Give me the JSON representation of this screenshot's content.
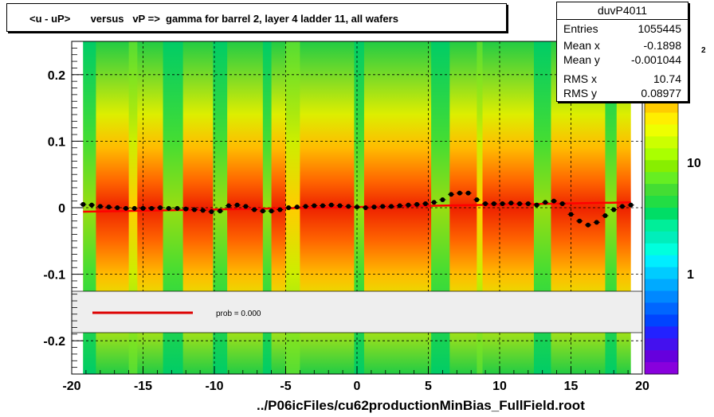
{
  "title": "<u - uP>       versus   vP =>  gamma for barrel 2, layer 4 ladder 11, all wafers",
  "stats": {
    "name": "duvP4011",
    "rows": [
      {
        "key": "Entries",
        "value": "1055445"
      },
      {
        "key": "Mean x",
        "value": "-0.1898"
      },
      {
        "key": "Mean y",
        "value": "-0.001044"
      },
      {
        "key": "RMS x",
        "value": "10.74"
      },
      {
        "key": "RMS y",
        "value": "0.08977"
      }
    ]
  },
  "legend": {
    "label": "prob = 0.000",
    "line_color": "#dd0000"
  },
  "footer": "../P06icFiles/cu62productionMinBias_FullField.root",
  "palette_labels": [
    "10",
    "1"
  ],
  "palette_exponent": "2",
  "chart_data": {
    "type": "heatmap",
    "xlim": [
      -20,
      20
    ],
    "ylim": [
      -0.25,
      0.25
    ],
    "x_ticks": [
      -20,
      -15,
      -10,
      -5,
      0,
      5,
      10,
      15,
      20
    ],
    "y_ticks": [
      -0.2,
      -0.1,
      0,
      0.1,
      0.2
    ],
    "x_tick_labels": [
      "-20",
      "-15",
      "-10",
      "-5",
      "0",
      "5",
      "10",
      "15",
      "20"
    ],
    "y_tick_labels": [
      "-0.2",
      "-0.1",
      "0",
      "0.1",
      "0.2"
    ],
    "grid": true,
    "z_scale": "log",
    "profile_points": {
      "x": [
        -19.2,
        -18.6,
        -18.0,
        -17.4,
        -16.8,
        -16.2,
        -15.6,
        -15.0,
        -14.4,
        -13.8,
        -13.2,
        -12.6,
        -12.0,
        -11.4,
        -10.8,
        -10.2,
        -9.6,
        -9.0,
        -8.4,
        -7.8,
        -7.2,
        -6.6,
        -6.0,
        -5.4,
        -4.8,
        -4.2,
        -3.6,
        -3.0,
        -2.4,
        -1.8,
        -1.2,
        -0.6,
        0.0,
        0.6,
        1.2,
        1.8,
        2.4,
        3.0,
        3.6,
        4.2,
        4.8,
        5.4,
        6.0,
        6.6,
        7.2,
        7.8,
        8.4,
        9.0,
        9.6,
        10.2,
        10.8,
        11.4,
        12.0,
        12.6,
        13.2,
        13.8,
        14.4,
        15.0,
        15.6,
        16.2,
        16.8,
        17.4,
        18.0,
        18.6,
        19.2
      ],
      "y": [
        0.005,
        0.004,
        0.002,
        0.001,
        0.0,
        -0.001,
        -0.001,
        -0.001,
        -0.001,
        0.0,
        -0.001,
        -0.001,
        -0.002,
        -0.003,
        -0.004,
        -0.006,
        -0.005,
        0.003,
        0.004,
        0.002,
        -0.003,
        -0.005,
        -0.005,
        -0.003,
        0.0,
        0.001,
        0.002,
        0.003,
        0.003,
        0.004,
        0.003,
        0.002,
        0.001,
        0.0,
        0.001,
        0.002,
        0.002,
        0.003,
        0.004,
        0.005,
        0.006,
        0.008,
        0.012,
        0.02,
        0.022,
        0.022,
        0.012,
        0.006,
        0.006,
        0.006,
        0.007,
        0.006,
        0.006,
        0.004,
        0.008,
        0.01,
        0.006,
        -0.01,
        -0.02,
        -0.026,
        -0.022,
        -0.012,
        -0.003,
        0.002,
        0.004
      ]
    },
    "fit_line": {
      "x": [
        -19.2,
        19.2
      ],
      "y": [
        -0.006,
        0.008
      ],
      "color": "#ff0000"
    },
    "stripes": [
      {
        "x0": -19.2,
        "x1": -18.3,
        "level": "green"
      },
      {
        "x0": -16.0,
        "x1": -15.4,
        "level": "yellow"
      },
      {
        "x0": -13.6,
        "x1": -12.2,
        "level": "green"
      },
      {
        "x0": -10.1,
        "x1": -9.1,
        "level": "green"
      },
      {
        "x0": -6.6,
        "x1": -6.0,
        "level": "green"
      },
      {
        "x0": -5.0,
        "x1": -4.0,
        "level": "yellow"
      },
      {
        "x0": -0.2,
        "x1": 0.5,
        "level": "green"
      },
      {
        "x0": 5.2,
        "x1": 6.5,
        "level": "green"
      },
      {
        "x0": 8.4,
        "x1": 8.8,
        "level": "yellow"
      },
      {
        "x0": 12.4,
        "x1": 13.6,
        "level": "green"
      },
      {
        "x0": 17.4,
        "x1": 18.2,
        "level": "green"
      }
    ]
  }
}
